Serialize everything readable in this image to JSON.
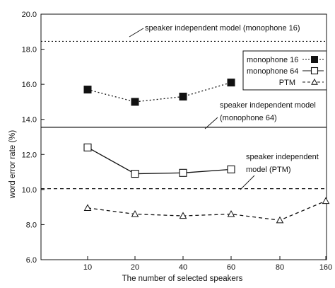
{
  "chart_data": {
    "type": "line",
    "title": "",
    "xlabel": "The number of selected speakers",
    "ylabel": "word error rate (%)",
    "ylim": [
      6.0,
      20.0
    ],
    "yticks": [
      "6.0",
      "8.0",
      "10.0",
      "12.0",
      "14.0",
      "16.0",
      "18.0",
      "20.0"
    ],
    "ytick_values": [
      6,
      8,
      10,
      12,
      14,
      16,
      18,
      20
    ],
    "xticks": [
      "10",
      "20",
      "40",
      "60",
      "80",
      "160"
    ],
    "x_categories": [
      "10",
      "20",
      "40",
      "60",
      "80",
      "160"
    ],
    "grid": false,
    "legend_position": "top-right",
    "series": [
      {
        "name": "monophone 16",
        "legend_label": "monophone 16",
        "marker": "filled-square",
        "line_style": "dotted",
        "color": "#111111",
        "x": [
          "10",
          "20",
          "40",
          "60"
        ],
        "values": [
          15.7,
          15.0,
          15.3,
          16.1
        ]
      },
      {
        "name": "monophone 64",
        "legend_label": "monophone 64",
        "marker": "open-square",
        "line_style": "solid",
        "color": "#111111",
        "x": [
          "10",
          "20",
          "40",
          "60"
        ],
        "values": [
          12.4,
          10.9,
          10.95,
          11.15
        ]
      },
      {
        "name": "PTM",
        "legend_label": "PTM",
        "marker": "open-triangle",
        "line_style": "dashed",
        "color": "#111111",
        "x": [
          "10",
          "20",
          "40",
          "60",
          "80",
          "160"
        ],
        "values": [
          8.95,
          8.6,
          8.5,
          8.6,
          8.25,
          9.35
        ]
      }
    ],
    "reference_lines": [
      {
        "label": "speaker independent model (monophone 16)",
        "value": 18.45,
        "line_style": "dotted"
      },
      {
        "label_line1": "speaker independent model",
        "label_line2": "(monophone 64)",
        "value": 13.55,
        "line_style": "solid"
      },
      {
        "label_line1": "speaker independent",
        "label_line2": "model (PTM)",
        "value": 10.05,
        "line_style": "dashed"
      }
    ]
  }
}
